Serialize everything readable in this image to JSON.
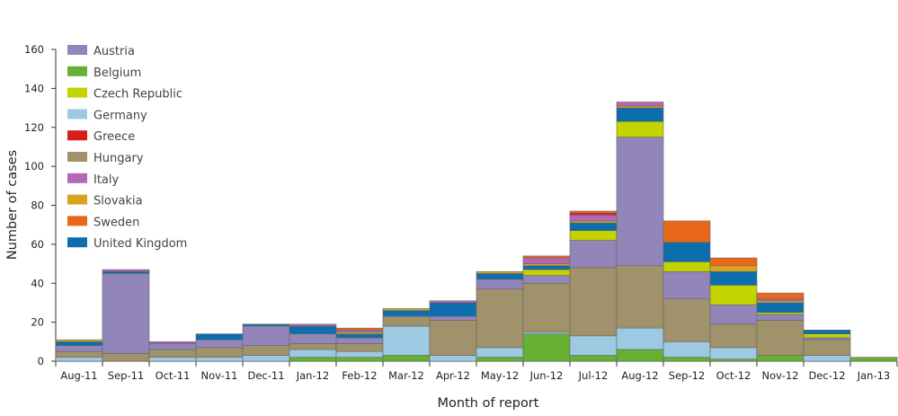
{
  "chart_data": {
    "type": "bar",
    "stacked": true,
    "xlabel": "Month of report",
    "ylabel": "Number of cases",
    "ylim": [
      0,
      160
    ],
    "yticks": [
      0,
      20,
      40,
      60,
      80,
      100,
      120,
      140,
      160
    ],
    "grid": false,
    "legend_position": "top-left",
    "categories": [
      "Aug-11",
      "Sep-11",
      "Oct-11",
      "Nov-11",
      "Dec-11",
      "Jan-12",
      "Feb-12",
      "Mar-12",
      "Apr-12",
      "May-12",
      "Jun-12",
      "Jul-12",
      "Aug-12",
      "Sep-12",
      "Oct-12",
      "Nov-12",
      "Dec-12",
      "Jan-13"
    ],
    "series": [
      {
        "name": "Belgium",
        "color": "#66b032",
        "values": [
          0,
          0,
          0,
          0,
          0,
          2,
          2,
          3,
          0,
          2,
          14,
          3,
          6,
          2,
          1,
          3,
          0,
          2
        ]
      },
      {
        "name": "Germany",
        "color": "#9ec9e2",
        "values": [
          2,
          0,
          2,
          2,
          3,
          4,
          3,
          15,
          3,
          5,
          1,
          10,
          11,
          8,
          6,
          0,
          3,
          0
        ]
      },
      {
        "name": "Hungary",
        "color": "#a0926a",
        "values": [
          3,
          4,
          4,
          5,
          5,
          3,
          4,
          5,
          18,
          30,
          25,
          35,
          32,
          22,
          12,
          18,
          8,
          0
        ]
      },
      {
        "name": "Austria",
        "color": "#9285ba",
        "values": [
          3,
          41,
          3,
          4,
          10,
          5,
          3,
          0,
          2,
          5,
          4,
          14,
          66,
          14,
          10,
          3,
          1,
          0
        ]
      },
      {
        "name": "Czech Republic",
        "color": "#c3d300",
        "values": [
          0,
          0,
          0,
          0,
          0,
          0,
          0,
          0,
          0,
          0,
          3,
          5,
          8,
          5,
          10,
          1,
          2,
          0
        ]
      },
      {
        "name": "United Kingdom",
        "color": "#0d6ead",
        "values": [
          2,
          1,
          0,
          3,
          1,
          4,
          2,
          3,
          7,
          3,
          2,
          4,
          7,
          10,
          7,
          5,
          2,
          0
        ]
      },
      {
        "name": "Slovakia",
        "color": "#d9a31e",
        "values": [
          1,
          0,
          0,
          0,
          0,
          0,
          1,
          1,
          0,
          1,
          1,
          1,
          1,
          0,
          3,
          1,
          0,
          0
        ]
      },
      {
        "name": "Italy",
        "color": "#b566b6",
        "values": [
          0,
          1,
          1,
          0,
          0,
          1,
          1,
          0,
          1,
          0,
          3,
          3,
          2,
          0,
          0,
          1,
          0,
          0
        ]
      },
      {
        "name": "Greece",
        "color": "#d71e18",
        "values": [
          0,
          0,
          0,
          0,
          0,
          0,
          0,
          0,
          0,
          0,
          0,
          1,
          0,
          0,
          0,
          0,
          0,
          0
        ]
      },
      {
        "name": "Sweden",
        "color": "#e8671a",
        "values": [
          0,
          0,
          0,
          0,
          0,
          0,
          1,
          0,
          0,
          0,
          1,
          1,
          0,
          11,
          4,
          3,
          0,
          0
        ]
      }
    ],
    "legend_order": [
      "Austria",
      "Belgium",
      "Czech Republic",
      "Germany",
      "Greece",
      "Hungary",
      "Italy",
      "Slovakia",
      "Sweden",
      "United Kingdom"
    ]
  }
}
